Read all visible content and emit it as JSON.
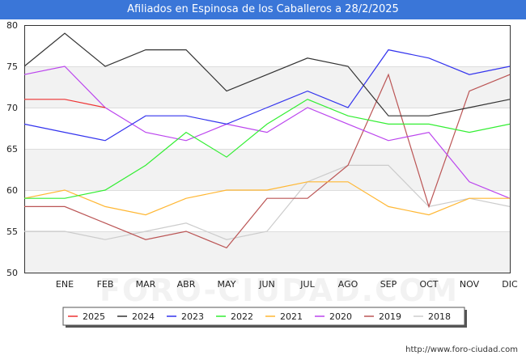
{
  "title": "Afiliados en Espinosa de los Caballeros a 28/2/2025",
  "watermark": "FORO-CIUDAD.COM",
  "footer_url": "http://www.foro-ciudad.com",
  "colors": {
    "title_bg": "#3a76d8",
    "title_text": "#ffffff",
    "band": "#f2f2f2",
    "grid": "#dddddd",
    "axis": "#333333"
  },
  "chart_data": {
    "type": "line",
    "categories": [
      "",
      "ENE",
      "FEB",
      "MAR",
      "ABR",
      "MAY",
      "JUN",
      "JUL",
      "AGO",
      "SEP",
      "OCT",
      "NOV",
      "DIC"
    ],
    "ylim": [
      50,
      80
    ],
    "yticks": [
      50,
      55,
      60,
      65,
      70,
      75,
      80
    ],
    "grid": true,
    "legend_position": "bottom",
    "series": [
      {
        "name": "2025",
        "color": "#ee3333",
        "values": [
          71,
          71,
          70,
          null,
          null,
          null,
          null,
          null,
          null,
          null,
          null,
          null,
          null
        ]
      },
      {
        "name": "2024",
        "color": "#333333",
        "values": [
          75,
          79,
          75,
          77,
          77,
          72,
          74,
          76,
          75,
          69,
          69,
          70,
          71
        ]
      },
      {
        "name": "2023",
        "color": "#3333ee",
        "values": [
          68,
          67,
          66,
          69,
          69,
          68,
          70,
          72,
          70,
          77,
          76,
          74,
          75
        ]
      },
      {
        "name": "2022",
        "color": "#33ee33",
        "values": [
          59,
          59,
          60,
          63,
          67,
          64,
          68,
          71,
          69,
          68,
          68,
          67,
          68
        ]
      },
      {
        "name": "2021",
        "color": "#ffb733",
        "values": [
          59,
          60,
          58,
          57,
          59,
          60,
          60,
          61,
          61,
          58,
          57,
          59,
          59
        ]
      },
      {
        "name": "2020",
        "color": "#bb44ee",
        "values": [
          74,
          75,
          70,
          67,
          66,
          68,
          67,
          70,
          68,
          66,
          67,
          61,
          59
        ]
      },
      {
        "name": "2019",
        "color": "#bb5555",
        "values": [
          58,
          58,
          56,
          54,
          55,
          53,
          59,
          59,
          63,
          74,
          58,
          72,
          74
        ]
      },
      {
        "name": "2018",
        "color": "#cccccc",
        "values": [
          55,
          55,
          54,
          55,
          56,
          54,
          55,
          61,
          63,
          63,
          58,
          59,
          58
        ]
      }
    ]
  }
}
